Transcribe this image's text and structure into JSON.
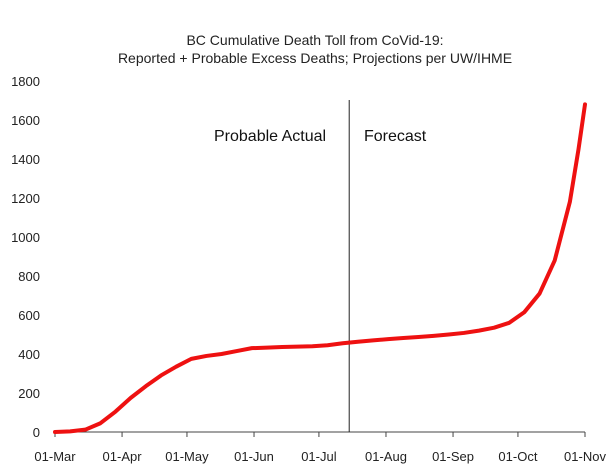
{
  "chart_data": {
    "type": "line",
    "title": "BC Cumulative Death Toll from CoVid-19:",
    "subtitle": "Reported + Probable Excess Deaths; Projections per UW/IHME",
    "xlabel": "",
    "ylabel": "",
    "ylim": [
      0,
      1800
    ],
    "yticks": [
      0,
      200,
      400,
      600,
      800,
      1000,
      1200,
      1400,
      1600,
      1800
    ],
    "ytick_labels": [
      "0",
      "200",
      "400",
      "600",
      "800",
      "1000",
      "1200",
      "1400",
      "1600",
      "1800"
    ],
    "xlim": [
      "2020-03-01",
      "2020-11-01"
    ],
    "xticks": [
      "2020-03-01",
      "2020-04-01",
      "2020-05-01",
      "2020-06-01",
      "2020-07-01",
      "2020-08-01",
      "2020-09-01",
      "2020-10-01",
      "2020-11-01"
    ],
    "xtick_labels": [
      "01-Mar",
      "01-Apr",
      "01-May",
      "01-Jun",
      "01-Jul",
      "01-Aug",
      "01-Sep",
      "01-Oct",
      "01-Nov"
    ],
    "grid": false,
    "line_color": "#ee1111",
    "divider_date": "2020-07-15",
    "annotations": {
      "left": "Probable Actual",
      "right": "Forecast"
    },
    "series": [
      {
        "points": [
          [
            "2020-03-01",
            0
          ],
          [
            "2020-03-08",
            3
          ],
          [
            "2020-03-15",
            12
          ],
          [
            "2020-03-22",
            45
          ],
          [
            "2020-03-29",
            105
          ],
          [
            "2020-04-05",
            175
          ],
          [
            "2020-04-12",
            235
          ],
          [
            "2020-04-19",
            290
          ],
          [
            "2020-04-26",
            335
          ],
          [
            "2020-05-03",
            375
          ],
          [
            "2020-05-10",
            390
          ],
          [
            "2020-05-17",
            400
          ],
          [
            "2020-05-24",
            415
          ],
          [
            "2020-05-31",
            430
          ],
          [
            "2020-06-07",
            433
          ],
          [
            "2020-06-14",
            436
          ],
          [
            "2020-06-21",
            438
          ],
          [
            "2020-06-28",
            440
          ],
          [
            "2020-07-05",
            445
          ],
          [
            "2020-07-12",
            455
          ],
          [
            "2020-07-19",
            463
          ],
          [
            "2020-07-26",
            470
          ],
          [
            "2020-08-02",
            476
          ],
          [
            "2020-08-09",
            482
          ],
          [
            "2020-08-16",
            487
          ],
          [
            "2020-08-23",
            493
          ],
          [
            "2020-08-30",
            500
          ],
          [
            "2020-09-06",
            508
          ],
          [
            "2020-09-13",
            520
          ],
          [
            "2020-09-20",
            535
          ],
          [
            "2020-09-27",
            560
          ],
          [
            "2020-10-04",
            615
          ],
          [
            "2020-10-11",
            710
          ],
          [
            "2020-10-18",
            880
          ],
          [
            "2020-10-25",
            1180
          ],
          [
            "2020-10-29",
            1450
          ],
          [
            "2020-11-01",
            1680
          ]
        ]
      }
    ]
  }
}
